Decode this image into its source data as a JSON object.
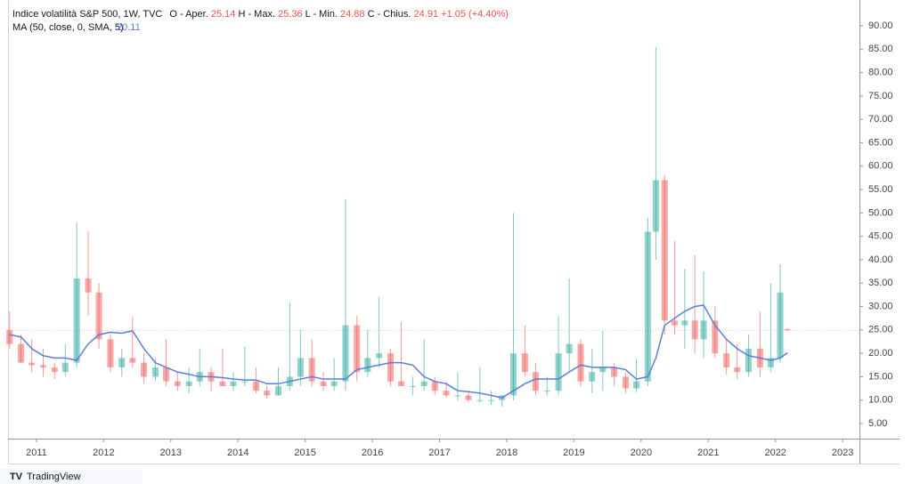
{
  "chart_data": {
    "type": "candlestick",
    "title": "Indice volatilità S&P 500, 1W, TVC",
    "ohlc_labels": {
      "open": "O - Aper.",
      "high": "H - Max.",
      "low": "L - Min.",
      "close": "C - Chius."
    },
    "change": "+1.05 (+4.40%)",
    "up_color": "#26a69a",
    "down_color": "#ef5350",
    "x": [
      2010.6,
      2010.77,
      2010.93,
      2011.1,
      2011.27,
      2011.43,
      2011.6,
      2011.77,
      2011.93,
      2012.1,
      2012.27,
      2012.43,
      2012.6,
      2012.77,
      2012.93,
      2013.1,
      2013.27,
      2013.43,
      2013.6,
      2013.77,
      2013.93,
      2014.1,
      2014.27,
      2014.43,
      2014.6,
      2014.77,
      2014.93,
      2015.1,
      2015.27,
      2015.43,
      2015.6,
      2015.77,
      2015.93,
      2016.1,
      2016.27,
      2016.43,
      2016.6,
      2016.77,
      2016.93,
      2017.1,
      2017.27,
      2017.43,
      2017.6,
      2017.77,
      2017.93,
      2018.1,
      2018.27,
      2018.43,
      2018.6,
      2018.77,
      2018.93,
      2019.1,
      2019.27,
      2019.43,
      2019.6,
      2019.77,
      2019.93,
      2020.1,
      2020.22,
      2020.35,
      2020.5,
      2020.65,
      2020.8,
      2020.93,
      2021.1,
      2021.27,
      2021.43,
      2021.6,
      2021.77,
      2021.93,
      2022.07,
      2022.18
    ],
    "open": [
      25,
      22,
      18,
      17.5,
      17,
      16,
      18,
      36,
      33,
      23,
      17,
      19,
      18,
      15,
      17,
      14,
      13,
      14,
      16,
      14,
      13,
      14,
      14,
      12,
      11,
      13,
      15,
      19,
      14,
      13,
      14,
      26,
      16,
      19,
      20,
      14,
      13,
      13,
      14,
      12,
      11,
      11,
      10,
      10,
      10,
      11,
      20,
      16,
      12,
      12,
      20,
      22,
      14,
      16,
      17,
      15,
      12.5,
      14,
      46,
      57,
      27,
      26,
      27,
      23,
      27,
      20,
      17,
      16,
      21,
      17,
      19,
      25.14
    ],
    "high": [
      29,
      24,
      23,
      21,
      18,
      22,
      48,
      46,
      35,
      24,
      21,
      27.7,
      20,
      19,
      23,
      16,
      17,
      21,
      17,
      21,
      16,
      21.5,
      17,
      13,
      17,
      31,
      25,
      23,
      16,
      19,
      53,
      28,
      25,
      32,
      21,
      26.7,
      15,
      23,
      15,
      14,
      16,
      12,
      17,
      12,
      11,
      50,
      26,
      18,
      15,
      28,
      36,
      23,
      21,
      24.8,
      18,
      16,
      18.8,
      49,
      85.5,
      58,
      44,
      38,
      41,
      37.5,
      30,
      23,
      22,
      24,
      28.9,
      35,
      39,
      25.36
    ],
    "low": [
      21,
      18,
      16,
      15,
      14.5,
      15,
      17,
      28,
      21,
      16,
      15,
      17,
      13.5,
      14,
      13,
      12,
      11.5,
      13,
      12,
      13,
      12,
      13,
      11.5,
      10.3,
      11,
      12,
      13,
      13,
      12,
      12,
      12,
      14,
      15,
      17,
      13,
      13,
      11,
      12,
      11,
      10.5,
      10,
      9.5,
      9.5,
      9,
      8.6,
      10,
      15,
      11,
      11,
      11,
      16,
      13,
      11.5,
      12,
      13,
      11.5,
      11.7,
      13,
      40,
      24,
      24,
      21,
      20,
      19,
      19,
      15.5,
      14.5,
      15,
      15,
      16,
      18,
      24.88
    ],
    "close": [
      22,
      18,
      17.5,
      17,
      16,
      18,
      36,
      33,
      23,
      17,
      19,
      18,
      15,
      17,
      14,
      13,
      14,
      16,
      14,
      13,
      14,
      14,
      12,
      11,
      13,
      15,
      19,
      14,
      13,
      14,
      26,
      16,
      19,
      20,
      14,
      13,
      13,
      14,
      12,
      11,
      11,
      10,
      10,
      10,
      11,
      20,
      16,
      12,
      12,
      20,
      22,
      14,
      16,
      17,
      15,
      12.5,
      14,
      46,
      57,
      27,
      26,
      27,
      23,
      27,
      20,
      17,
      16,
      21,
      17,
      19,
      33,
      24.91
    ],
    "series": [
      {
        "name": "MA (50, close, 0, SMA, 5)",
        "color": "#5b7fd6",
        "values": [
          24,
          23.5,
          21,
          19.5,
          19,
          19,
          18.5,
          22,
          24,
          24.5,
          24.3,
          24.8,
          21,
          18,
          17,
          16,
          15.5,
          15,
          15,
          14.8,
          14.5,
          14.3,
          14.3,
          13.5,
          13.5,
          14,
          14.5,
          15,
          14.5,
          14.5,
          14.5,
          16.5,
          17,
          17.5,
          18,
          18,
          17.5,
          15,
          14,
          13.5,
          12,
          11.8,
          11.5,
          11,
          10.5,
          12,
          13.5,
          14.5,
          14.5,
          14.5,
          16,
          17.5,
          17,
          17,
          17,
          16.5,
          14.5,
          15,
          19,
          26,
          27.5,
          29,
          30,
          30.3,
          26,
          23,
          21,
          19.5,
          19,
          18.5,
          19,
          20.11
        ]
      }
    ],
    "xlim": [
      2010.59,
      2023.25
    ],
    "xticks": [
      2011,
      2012,
      2013,
      2014,
      2015,
      2016,
      2017,
      2018,
      2019,
      2020,
      2021,
      2022,
      2023
    ],
    "ylim": [
      1.77,
      95.51
    ],
    "yticks": [
      {
        "value": 5,
        "label": "5.00"
      },
      {
        "value": 10,
        "label": "10.00"
      },
      {
        "value": 15,
        "label": "15.00"
      },
      {
        "value": 20,
        "label": "20.00"
      },
      {
        "value": 25,
        "label": "25.00"
      },
      {
        "value": 30,
        "label": "30.00"
      },
      {
        "value": 35,
        "label": "35.00"
      },
      {
        "value": 40,
        "label": "40.00"
      },
      {
        "value": 45,
        "label": "45.00"
      },
      {
        "value": 50,
        "label": "50.00"
      },
      {
        "value": 55,
        "label": "55.00"
      },
      {
        "value": 60,
        "label": "60.00"
      },
      {
        "value": 65,
        "label": "65.00"
      },
      {
        "value": 70,
        "label": "70.00"
      },
      {
        "value": 75,
        "label": "75.00"
      },
      {
        "value": 80,
        "label": "80.00"
      },
      {
        "value": 85,
        "label": "85.00"
      },
      {
        "value": 90,
        "label": "90.00"
      }
    ]
  },
  "footer": {
    "brand": "TradingView"
  }
}
